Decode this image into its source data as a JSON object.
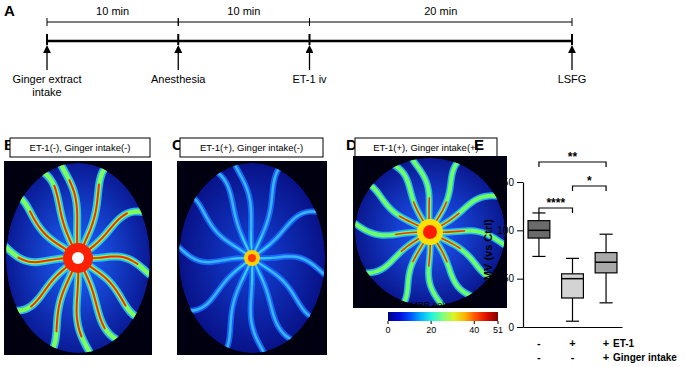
{
  "panel_a": {
    "letter": "A",
    "intervals": [
      "10 min",
      "10 min",
      "20 min"
    ],
    "events": [
      {
        "time": 0,
        "label": [
          "Ginger extract",
          "intake"
        ]
      },
      {
        "time": 10,
        "label": [
          "Anesthesia"
        ]
      },
      {
        "time": 20,
        "label": [
          "ET-1 iv"
        ]
      },
      {
        "time": 40,
        "label": [
          "LSFG"
        ]
      }
    ]
  },
  "images": [
    {
      "letter": "B",
      "caption": "ET-1(-), Ginger intake(-)"
    },
    {
      "letter": "C",
      "caption": "ET-1(+), Ginger intake(-)"
    },
    {
      "letter": "D",
      "caption": "ET-1(+), Ginger intake(+)"
    }
  ],
  "color_scale": {
    "title": "MBR color scale",
    "range": [
      0,
      51
    ],
    "ticks": [
      0,
      20,
      40,
      51
    ]
  },
  "chart_data": {
    "type": "box",
    "panel_label": "E",
    "y_label": "%MV (vs Ctrl)",
    "ylim": [
      0,
      150
    ],
    "yticks": [
      0,
      50,
      100,
      150
    ],
    "categories": [
      null,
      null,
      null
    ],
    "factors": [
      {
        "name": "ET-1",
        "levels": [
          "-",
          "+",
          "+"
        ]
      },
      {
        "name": "Ginger intake",
        "levels": [
          "-",
          "-",
          "+"
        ]
      }
    ],
    "boxes": [
      {
        "min": 73,
        "q1": 92,
        "median": 100,
        "q3": 110,
        "max": 118,
        "color": "#6b6b6b"
      },
      {
        "min": 6,
        "q1": 30,
        "median": 50,
        "q3": 55,
        "max": 71,
        "color": "#d3d3d3"
      },
      {
        "min": 25,
        "q1": 56,
        "median": 67,
        "q3": 77,
        "max": 96,
        "color": "#a9a9a9"
      }
    ],
    "significance": [
      {
        "from": 0,
        "to": 1,
        "label": "****"
      },
      {
        "from": 1,
        "to": 2,
        "label": "*"
      },
      {
        "from": 0,
        "to": 2,
        "label": "**"
      }
    ]
  }
}
